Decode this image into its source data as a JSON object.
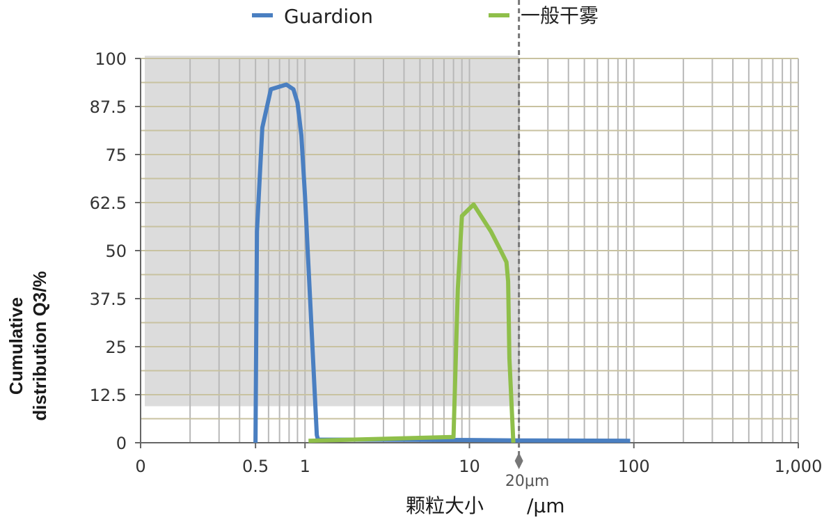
{
  "chart_data": {
    "type": "line",
    "x_scale": "log",
    "xlabel": "颗粒大小",
    "xlabel_unit": "/μm",
    "ylabel_line1": "Cumulative",
    "ylabel_line2": "distribution Q3/%",
    "ylim": [
      0,
      100
    ],
    "y_ticks": [
      "0",
      "12.5",
      "25",
      "37.5",
      "50",
      "62.5",
      "75",
      "87.5",
      "100"
    ],
    "x_ticks": [
      {
        "value": 0.1,
        "label": "0"
      },
      {
        "value": 0.5,
        "label": "0.5"
      },
      {
        "value": 1,
        "label": "1"
      },
      {
        "value": 10,
        "label": "10"
      },
      {
        "value": 100,
        "label": "100"
      },
      {
        "value": 1000,
        "label": "1,000"
      }
    ],
    "annotation": {
      "x": 20,
      "label": "20μm"
    },
    "shaded_region": {
      "x_from": 0.1,
      "x_to": 20,
      "y_from": 9.5,
      "y_to": 100
    },
    "series": [
      {
        "name": "Guardion",
        "color": "#4a7fc1",
        "points": [
          [
            0.5,
            0
          ],
          [
            0.51,
            55
          ],
          [
            0.55,
            82
          ],
          [
            0.62,
            92
          ],
          [
            0.77,
            93.2
          ],
          [
            0.85,
            92
          ],
          [
            0.9,
            88.5
          ],
          [
            0.95,
            80
          ],
          [
            1.0,
            64
          ],
          [
            1.18,
            2
          ],
          [
            1.2,
            0.8
          ],
          [
            3,
            0.8
          ],
          [
            10,
            0.7
          ],
          [
            20,
            0.6
          ],
          [
            95,
            0.5
          ]
        ]
      },
      {
        "name": "一般干雾",
        "color": "#8fbf4a",
        "points": [
          [
            1.05,
            0.5
          ],
          [
            8,
            1.5
          ],
          [
            8.5,
            40
          ],
          [
            9,
            59
          ],
          [
            10.6,
            62
          ],
          [
            13.5,
            55
          ],
          [
            15.5,
            50
          ],
          [
            16.8,
            47
          ],
          [
            17.2,
            42
          ],
          [
            17.5,
            22
          ],
          [
            18.5,
            0
          ]
        ]
      }
    ]
  }
}
